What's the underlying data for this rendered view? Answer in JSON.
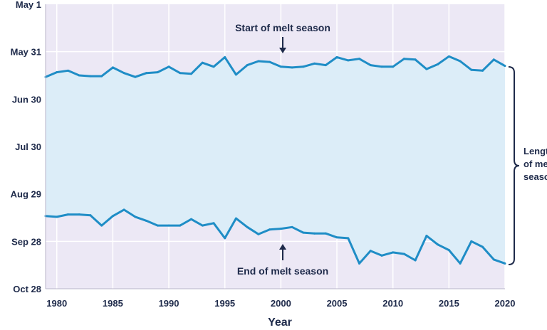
{
  "chart_data": {
    "type": "line",
    "title": "",
    "xlabel": "Year",
    "ylabel": "",
    "x": [
      1979,
      1980,
      1981,
      1982,
      1983,
      1984,
      1985,
      1986,
      1987,
      1988,
      1989,
      1990,
      1991,
      1992,
      1993,
      1994,
      1995,
      1996,
      1997,
      1998,
      1999,
      2000,
      2001,
      2002,
      2003,
      2004,
      2005,
      2006,
      2007,
      2008,
      2009,
      2010,
      2011,
      2012,
      2013,
      2014,
      2015,
      2016,
      2017,
      2018,
      2019,
      2020
    ],
    "xlim": [
      1979,
      2020
    ],
    "xticks": [
      1980,
      1985,
      1990,
      1995,
      2000,
      2005,
      2010,
      2015,
      2020
    ],
    "ylim_days": [
      0,
      180
    ],
    "yticks": [
      {
        "label": "May 1",
        "day": 0
      },
      {
        "label": "May 31",
        "day": 30
      },
      {
        "label": "Jun 30",
        "day": 60
      },
      {
        "label": "Jul 30",
        "day": 90
      },
      {
        "label": "Aug 29",
        "day": 120
      },
      {
        "label": "Sep 28",
        "day": 150
      },
      {
        "label": "Oct 28",
        "day": 180
      }
    ],
    "series": [
      {
        "name": "Start of melt season",
        "unit": "days after May 1",
        "values": [
          46,
          43,
          42,
          45,
          45.5,
          45.5,
          40,
          43.5,
          46,
          43.5,
          43,
          39.5,
          43.5,
          44,
          37,
          39.5,
          33.5,
          44.5,
          38.5,
          36,
          36.5,
          39.5,
          40,
          39.5,
          37.5,
          38.5,
          33.5,
          35.5,
          34.5,
          38.5,
          39.5,
          39.5,
          34.5,
          35,
          41,
          38,
          33,
          36,
          41.5,
          42,
          35,
          39
        ]
      },
      {
        "name": "End of melt season",
        "unit": "days after May 1",
        "values": [
          134,
          134.5,
          133,
          133,
          133.5,
          140,
          134,
          130,
          134.5,
          137,
          140,
          140,
          140,
          136,
          140,
          138.5,
          148,
          135.5,
          141,
          145.5,
          142.5,
          142,
          141,
          144.5,
          145,
          145,
          147.5,
          148,
          164,
          156,
          159,
          157,
          158,
          162,
          146.5,
          152,
          155.5,
          164,
          150,
          153.5,
          161.5,
          164
        ]
      }
    ],
    "annotations": {
      "start_label": "Start of melt season",
      "end_label": "End of melt season",
      "bracket_line1": "Length",
      "bracket_line2": "of melt",
      "bracket_line3": "season"
    },
    "colors": {
      "line": "#1f8dc6",
      "fill": "#dcedf8",
      "background": "#ece8f5",
      "grid": "#ffffff",
      "text": "#1e2a4a"
    }
  }
}
